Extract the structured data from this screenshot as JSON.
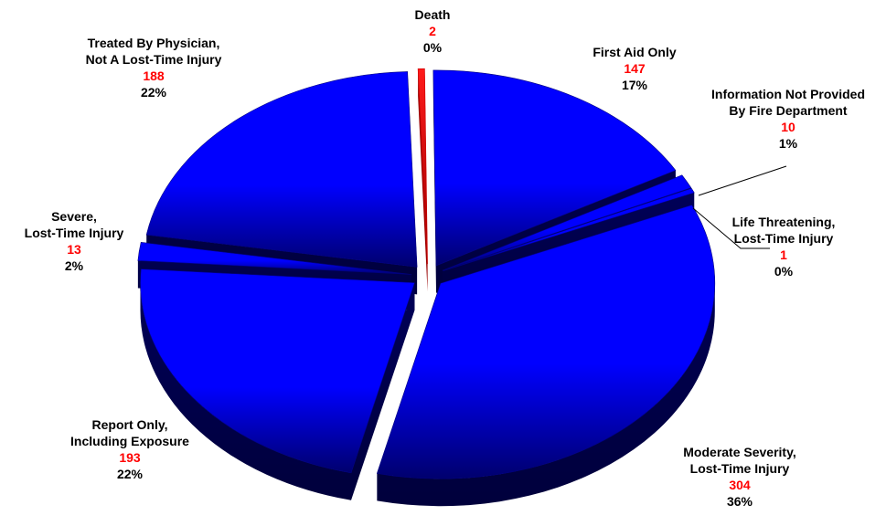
{
  "colors": {
    "slice_face": "#0000ff",
    "slice_dark": "#00006e",
    "slice_side": "#00003c",
    "death_face": "#ff1a1a",
    "death_side": "#990000",
    "label_text": "#000000",
    "value_text": "#ff0000",
    "leader_line": "#000000"
  },
  "chart_data": {
    "type": "pie",
    "exploded": true,
    "three_d": true,
    "legend": "none",
    "slices": [
      {
        "lines": [
          "Death"
        ],
        "value": "2",
        "percent": "0%",
        "color": "#ff0000"
      },
      {
        "lines": [
          "First Aid Only"
        ],
        "value": "147",
        "percent": "17%",
        "color": "#0000ff"
      },
      {
        "lines": [
          "Information Not Provided",
          "By Fire Department"
        ],
        "value": "10",
        "percent": "1%",
        "color": "#0000ff"
      },
      {
        "lines": [
          "Life Threatening,",
          "Lost-Time Injury"
        ],
        "value": "1",
        "percent": "0%",
        "color": "#0000ff"
      },
      {
        "lines": [
          "Moderate Severity,",
          "Lost-Time Injury"
        ],
        "value": "304",
        "percent": "36%",
        "color": "#0000ff"
      },
      {
        "lines": [
          "Report Only,",
          "Including Exposure"
        ],
        "value": "193",
        "percent": "22%",
        "color": "#0000ff"
      },
      {
        "lines": [
          "Severe,",
          "Lost-Time Injury"
        ],
        "value": "13",
        "percent": "2%",
        "color": "#0000ff"
      },
      {
        "lines": [
          "Treated By Physician,",
          "Not A Lost-Time Injury"
        ],
        "value": "188",
        "percent": "22%",
        "color": "#0000ff"
      }
    ]
  }
}
